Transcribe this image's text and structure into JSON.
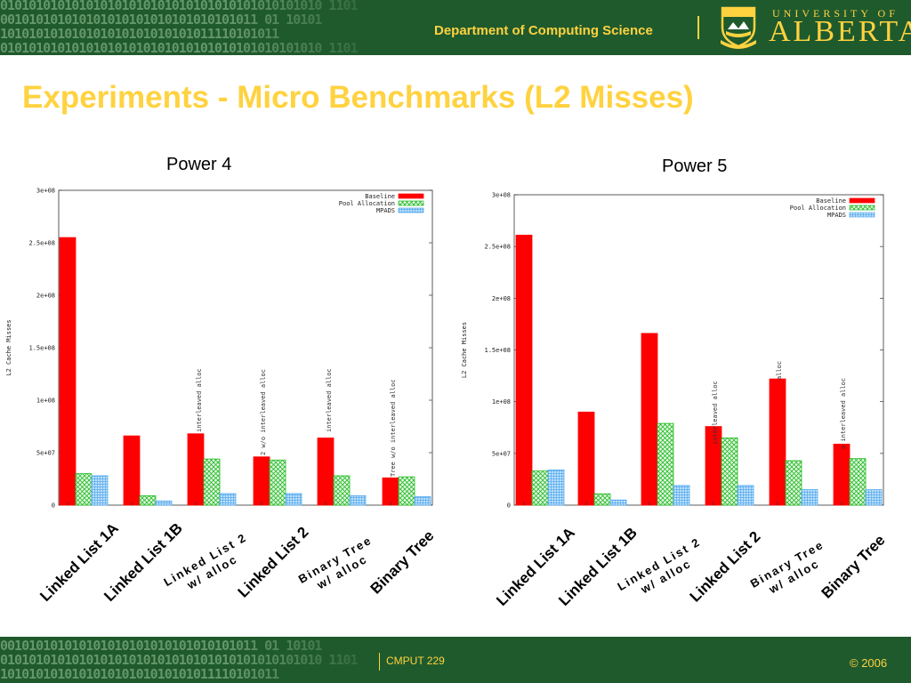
{
  "header": {
    "binary_lines": [
      "010101010101010101010101010101010101010101010 1101",
      "001010101010101010101010101010101011 01 10101",
      "101010101010101010101010101011110101011"
    ],
    "department": "Department of Computing Science",
    "university_line1": "UNIVERSITY OF",
    "university_line2": "ALBERTA"
  },
  "slide": {
    "title": "Experiments - Micro Benchmarks (L2 Misses)"
  },
  "footer": {
    "course": "CMPUT 229",
    "copyright": "© 2006"
  },
  "colors": {
    "baseline": "#ff0000",
    "pool": "#22bb22",
    "mpads": "#55aaee",
    "bar_green": "#1f5a2d",
    "accent": "#ffd23f"
  },
  "chart_data": [
    {
      "type": "bar",
      "title": "Power 4",
      "ylabel": "L2 Cache Misses",
      "ylim": [
        0,
        300000000
      ],
      "y_ticks": [
        "0",
        "5e+07",
        "1e+08",
        "1.5e+08",
        "2e+08",
        "2.5e+08",
        "3e+08"
      ],
      "legend_position": "top-right",
      "categories": [
        "Linked List 1A",
        "Linked List 1B",
        "Linked List 2 w/ alloc",
        "Linked List 2",
        "Binary Tree w/ alloc",
        "Binary Tree"
      ],
      "series": [
        {
          "name": "Baseline",
          "values": [
            255000000,
            66000000,
            68000000,
            46000000,
            64000000,
            26000000
          ]
        },
        {
          "name": "Pool Allocation",
          "values": [
            30000000,
            9000000,
            44000000,
            43000000,
            28000000,
            27000000
          ]
        },
        {
          "name": "MPADS",
          "values": [
            28000000,
            4000000,
            11000000,
            11000000,
            9000000,
            8000000
          ]
        }
      ],
      "annotations": [
        "interleaved alloc",
        "2 w/o interleaved alloc",
        "interleaved alloc",
        "Tree w/o interleaved alloc"
      ]
    },
    {
      "type": "bar",
      "title": "Power 5",
      "ylabel": "L2 Cache Misses",
      "ylim": [
        0,
        300000000
      ],
      "y_ticks": [
        "0",
        "5e+07",
        "1e+08",
        "1.5e+08",
        "2e+08",
        "2.5e+08",
        "3e+08"
      ],
      "legend_position": "top-right",
      "categories": [
        "Linked List 1A",
        "Linked List 1B",
        "Linked List 2 w/ alloc",
        "Linked List 2",
        "Binary Tree w/ alloc",
        "Binary Tree"
      ],
      "series": [
        {
          "name": "Baseline",
          "values": [
            261000000,
            90000000,
            166000000,
            76000000,
            122000000,
            59000000
          ]
        },
        {
          "name": "Pool Allocation",
          "values": [
            33000000,
            11000000,
            79000000,
            65000000,
            43000000,
            45000000
          ]
        },
        {
          "name": "MPADS",
          "values": [
            34000000,
            5000000,
            19000000,
            19000000,
            15000000,
            15000000
          ]
        }
      ],
      "annotations": [
        "interleaved alloc",
        "alloc",
        "o interleaved alloc"
      ]
    }
  ]
}
